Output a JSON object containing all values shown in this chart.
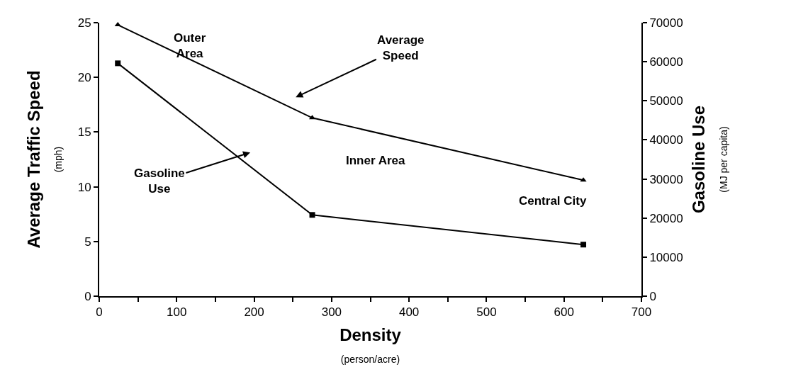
{
  "chart_data": {
    "type": "line",
    "xlabel": "Density\n(person/acre)",
    "ylabel": "Average Traffic Speed\n(mph)",
    "y2label": "Gasoline Use\n(MJ per capita)",
    "series": [
      {
        "color": "#000000",
        "marker": "triangle",
        "x": [
          24,
          275,
          625
        ],
        "values": [
          24.8,
          16.3,
          10.6
        ]
      },
      {
        "color": "#000000",
        "marker": "square",
        "axis": "y2",
        "x": [
          24,
          275,
          625
        ],
        "values": [
          59600,
          20800,
          13200
        ]
      }
    ],
    "xlim": [
      0,
      700
    ],
    "xticks": [
      0,
      {
        "value": 50,
        "label": null
      },
      100,
      {
        "value": 150,
        "label": null
      },
      200,
      {
        "value": 250,
        "label": null
      },
      300,
      {
        "value": 350,
        "label": null
      },
      400,
      {
        "value": 450,
        "label": null
      },
      500,
      {
        "value": 550,
        "label": null
      },
      600,
      {
        "value": 650,
        "label": null
      },
      700
    ],
    "ylim": [
      0,
      25
    ],
    "yticks": [
      0,
      5,
      10,
      15,
      20,
      25
    ],
    "y2lim": [
      0,
      70000
    ],
    "y2ticks": [
      0,
      10000,
      20000,
      30000,
      40000,
      50000,
      60000,
      70000
    ],
    "annotations": [
      "Outer\nArea",
      "Average\nSpeed",
      "Gasoline\nUse",
      "Inner Area",
      "Central City"
    ],
    "legend": false
  }
}
